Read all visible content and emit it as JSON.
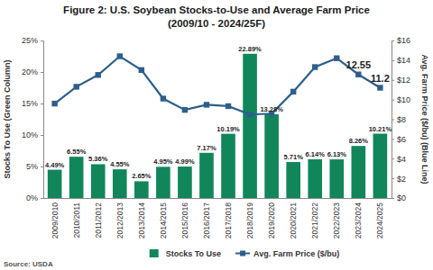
{
  "chart_data": {
    "type": "bar",
    "title": "Figure 2: U.S. Soybean Stocks-to-Use and Average Farm Price",
    "subtitle": "(2009/10 - 2024/25F)",
    "y_label": "Stocks To Use (Green Column)",
    "y2_label": "Avg. Farm Price ($/bu) (Blue Line)",
    "source": "Source: USDA",
    "categories": [
      "2009/2010",
      "2010/2011",
      "2011/2012",
      "2012/2013",
      "2013/2014",
      "2014/2015",
      "2015/2016",
      "2016/2017",
      "2017/2018",
      "2018/2019",
      "2019/2020",
      "2020/2021",
      "2021/2022",
      "2022/2023",
      "2023/2024",
      "2024/2025"
    ],
    "series": [
      {
        "name": "Stocks To Use",
        "type": "bar",
        "color": "#12865b",
        "values": [
          4.49,
          6.55,
          5.36,
          4.55,
          2.65,
          4.95,
          4.99,
          7.17,
          10.19,
          22.89,
          13.28,
          5.71,
          6.14,
          6.13,
          8.26,
          10.21
        ],
        "value_labels": [
          "4.49%",
          "6.55%",
          "5.36%",
          "4.55%",
          "2.65%",
          "4.95%",
          "4.99%",
          "7.17%",
          "10.19%",
          "22.89%",
          "13.28%",
          "5.71%",
          "6.14%",
          "6.13%",
          "8.26%",
          "10.21%"
        ]
      },
      {
        "name": "Avg. Farm Price ($/bu)",
        "type": "line",
        "axis": "y2",
        "color": "#2d5f8b",
        "marker": "square",
        "line_style": "solid",
        "values": [
          9.59,
          11.3,
          12.5,
          14.4,
          13.0,
          10.1,
          8.95,
          9.47,
          9.33,
          8.48,
          8.57,
          10.8,
          13.3,
          14.2,
          12.55,
          11.2
        ],
        "value_labels": [
          null,
          null,
          null,
          null,
          null,
          null,
          null,
          null,
          null,
          null,
          null,
          null,
          null,
          null,
          "12.55",
          "11.2"
        ]
      }
    ],
    "ylim": [
      0,
      25
    ],
    "yticks": [
      {
        "value": 0,
        "label": "0%"
      },
      {
        "value": 5,
        "label": "5%"
      },
      {
        "value": 10,
        "label": "10%"
      },
      {
        "value": 15,
        "label": "15%"
      },
      {
        "value": 20,
        "label": "20%"
      },
      {
        "value": 25,
        "label": "25%"
      }
    ],
    "y2lim": [
      0,
      16
    ],
    "y2ticks": [
      {
        "value": 0,
        "label": "$0"
      },
      {
        "value": 2,
        "label": "$2"
      },
      {
        "value": 4,
        "label": "$4"
      },
      {
        "value": 6,
        "label": "$6"
      },
      {
        "value": 8,
        "label": "$8"
      },
      {
        "value": 10,
        "label": "$10"
      },
      {
        "value": 12,
        "label": "$12"
      },
      {
        "value": 14,
        "label": "$14"
      },
      {
        "value": 16,
        "label": "$16"
      }
    ],
    "data_labels": true,
    "grid": false,
    "legend": "bottom"
  }
}
